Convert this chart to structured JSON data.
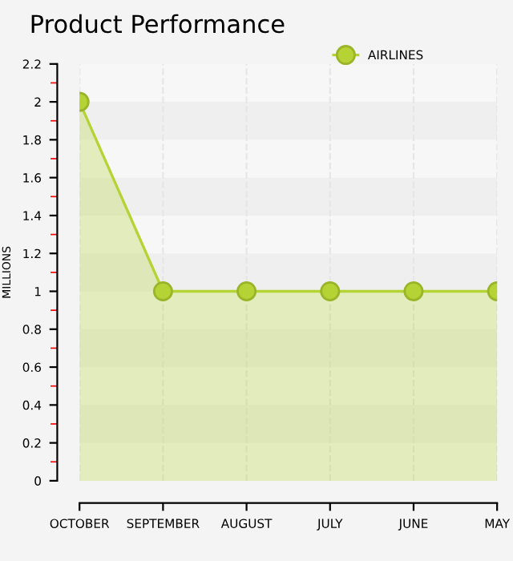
{
  "chart_data": {
    "type": "area",
    "title": "Product Performance",
    "ylabel": "MILLIONS",
    "categories": [
      "OCTOBER",
      "SEPTEMBER",
      "AUGUST",
      "JULY",
      "JUNE",
      "MAY"
    ],
    "series": [
      {
        "name": "AIRLINES",
        "color": "#b5d334",
        "values": [
          2,
          1,
          1,
          1,
          1,
          1
        ]
      }
    ],
    "ylim": [
      0,
      2.2
    ],
    "yticks": [
      0,
      0.2,
      0.4,
      0.6,
      0.8,
      1,
      1.2,
      1.4,
      1.6,
      1.8,
      2,
      2.2
    ],
    "grid": true,
    "legend": "top right",
    "marker": "circle"
  }
}
